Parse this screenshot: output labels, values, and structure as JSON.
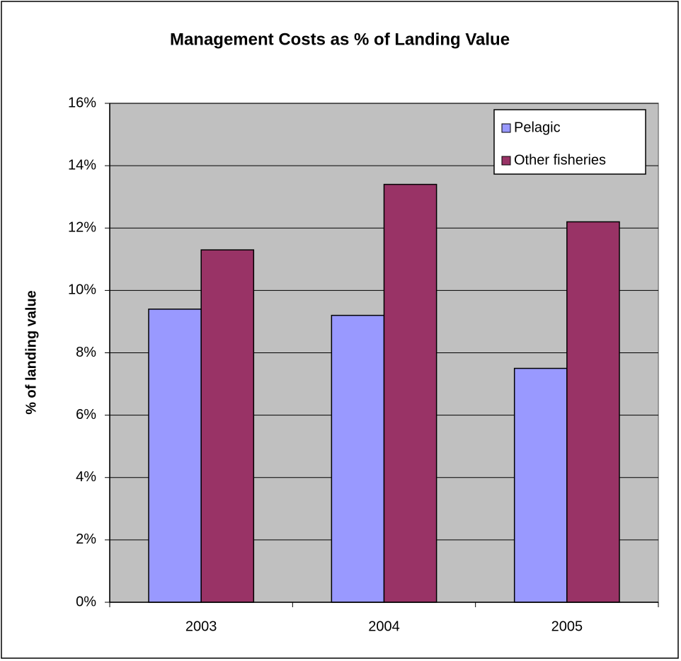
{
  "chart_data": {
    "type": "bar",
    "title": "Management Costs as % of Landing Value",
    "y_label": "% of landing value",
    "categories": [
      "2003",
      "2004",
      "2005"
    ],
    "series": [
      {
        "name": "Pelagic",
        "color": "#9999ff",
        "values": [
          9.4,
          9.2,
          7.5
        ]
      },
      {
        "name": "Other fisheries",
        "color": "#993366",
        "values": [
          11.3,
          13.4,
          12.2
        ]
      }
    ],
    "ylim": [
      0,
      16
    ],
    "yticks": [
      {
        "value": 0,
        "label": "0%"
      },
      {
        "value": 2,
        "label": "2%"
      },
      {
        "value": 4,
        "label": "4%"
      },
      {
        "value": 6,
        "label": "6%"
      },
      {
        "value": 8,
        "label": "8%"
      },
      {
        "value": 10,
        "label": "10%"
      },
      {
        "value": 12,
        "label": "12%"
      },
      {
        "value": 14,
        "label": "14%"
      },
      {
        "value": 16,
        "label": "16%"
      }
    ],
    "grid": true,
    "legend": "top-right",
    "plot_background": "#c0c0c0"
  }
}
